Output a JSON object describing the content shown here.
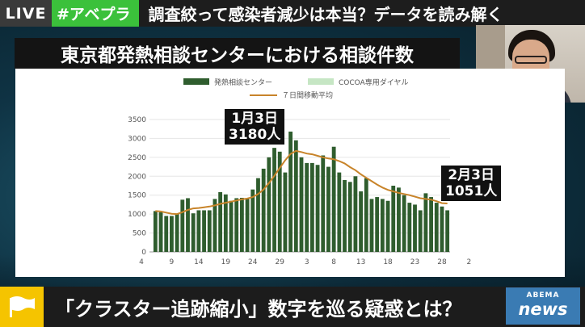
{
  "top_bar": {
    "live": "LIVE",
    "tag": "#アベプラ",
    "headline": "調査絞って感染者減少は本当？データを読み解く"
  },
  "title": "東京都発熱相談センターにおける相談件数",
  "annotations": [
    {
      "line1": "1月3日",
      "line2": "3180人"
    },
    {
      "line1": "2月3日",
      "line2": "1051人"
    }
  ],
  "caption": "「クラスター追跡縮小」数字を巡る疑惑とは？",
  "logo": {
    "top": "ABEMA",
    "bottom": "news"
  },
  "colors": {
    "bar": "#2f5d2e",
    "cocoa": "#c6e6c4",
    "avg_line": "#c8842a",
    "tag_green": "#3bc13b",
    "flag": "#f5c400"
  },
  "chart_data": {
    "type": "bar",
    "legend": [
      "発熱相談センター",
      "COCOA専用ダイヤル",
      "７日間移動平均"
    ],
    "ylim": [
      0,
      3500
    ],
    "yticks": [
      0,
      500,
      1000,
      1500,
      2000,
      2500,
      3000,
      3500
    ],
    "xtick_labels": [
      "4",
      "9",
      "14",
      "19",
      "24",
      "29",
      "3",
      "8",
      "13",
      "18",
      "23",
      "28",
      "2"
    ],
    "series": [
      {
        "name": "発熱相談センター",
        "values": [
          1080,
          1050,
          950,
          950,
          1000,
          1380,
          1420,
          1020,
          1100,
          1100,
          1100,
          1400,
          1580,
          1520,
          1350,
          1420,
          1430,
          1400,
          1650,
          1950,
          2200,
          2500,
          2750,
          2650,
          2100,
          3180,
          2950,
          2500,
          2350,
          2350,
          2300,
          2550,
          2250,
          2780,
          2100,
          1900,
          1850,
          2000,
          1600,
          1950,
          1400,
          1450,
          1400,
          1350,
          1750,
          1700,
          1500,
          1300,
          1250,
          1100,
          1550,
          1450,
          1300,
          1200,
          1100
        ]
      },
      {
        "name": "７日間移動平均",
        "values": [
          1080,
          1070,
          1040,
          1010,
          1000,
          1050,
          1110,
          1150,
          1160,
          1180,
          1200,
          1230,
          1270,
          1300,
          1330,
          1360,
          1390,
          1410,
          1450,
          1530,
          1650,
          1820,
          2010,
          2220,
          2420,
          2590,
          2670,
          2640,
          2600,
          2580,
          2540,
          2500,
          2470,
          2450,
          2400,
          2340,
          2240,
          2160,
          2050,
          1960,
          1870,
          1780,
          1700,
          1640,
          1600,
          1560,
          1530,
          1500,
          1460,
          1420,
          1400,
          1380,
          1340,
          1290,
          1280
        ]
      }
    ]
  }
}
